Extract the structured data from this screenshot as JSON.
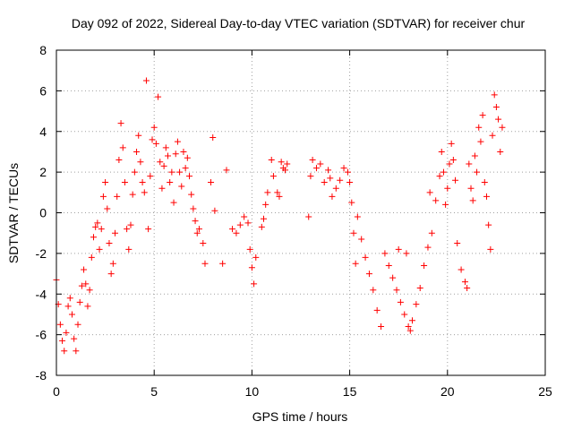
{
  "chart_data": {
    "type": "scatter",
    "title": "Day 092 of 2022, Sidereal Day-to-day VTEC variation (SDTVAR) for receiver chur",
    "xlabel": "GPS time / hours",
    "ylabel": "SDTVAR / TECUs",
    "xlim": [
      0,
      25
    ],
    "ylim": [
      -8,
      8
    ],
    "xticks": [
      0,
      5,
      10,
      15,
      20,
      25
    ],
    "yticks": [
      -8,
      -6,
      -4,
      -2,
      0,
      2,
      4,
      6,
      8
    ],
    "grid": true,
    "marker": "+",
    "series": [
      {
        "name": "SDTVAR",
        "color": "#ff0000",
        "points": [
          [
            0.0,
            -3.3
          ],
          [
            0.1,
            -4.5
          ],
          [
            0.2,
            -5.5
          ],
          [
            0.3,
            -6.3
          ],
          [
            0.4,
            -6.8
          ],
          [
            0.5,
            -5.9
          ],
          [
            0.6,
            -4.6
          ],
          [
            0.7,
            -4.2
          ],
          [
            0.8,
            -5.0
          ],
          [
            0.9,
            -6.2
          ],
          [
            1.0,
            -6.8
          ],
          [
            1.1,
            -5.5
          ],
          [
            1.2,
            -4.4
          ],
          [
            1.3,
            -3.6
          ],
          [
            1.4,
            -2.8
          ],
          [
            1.5,
            -3.5
          ],
          [
            1.6,
            -4.6
          ],
          [
            1.7,
            -3.8
          ],
          [
            1.8,
            -2.2
          ],
          [
            1.9,
            -1.2
          ],
          [
            2.0,
            -0.7
          ],
          [
            2.1,
            -0.5
          ],
          [
            2.2,
            -1.8
          ],
          [
            2.3,
            -0.8
          ],
          [
            2.4,
            0.8
          ],
          [
            2.5,
            1.5
          ],
          [
            2.6,
            0.2
          ],
          [
            2.7,
            -1.5
          ],
          [
            2.8,
            -3.0
          ],
          [
            2.9,
            -2.5
          ],
          [
            3.0,
            -1.0
          ],
          [
            3.1,
            0.8
          ],
          [
            3.2,
            2.6
          ],
          [
            3.3,
            4.4
          ],
          [
            3.4,
            3.2
          ],
          [
            3.5,
            1.5
          ],
          [
            3.6,
            -0.8
          ],
          [
            3.7,
            -1.8
          ],
          [
            3.8,
            -0.6
          ],
          [
            3.9,
            0.9
          ],
          [
            4.0,
            2.0
          ],
          [
            4.1,
            3.0
          ],
          [
            4.2,
            3.8
          ],
          [
            4.3,
            2.5
          ],
          [
            4.4,
            1.5
          ],
          [
            4.5,
            1.0
          ],
          [
            4.6,
            6.5
          ],
          [
            4.7,
            -0.8
          ],
          [
            4.8,
            1.8
          ],
          [
            4.9,
            3.6
          ],
          [
            5.0,
            4.2
          ],
          [
            5.1,
            3.4
          ],
          [
            5.2,
            5.7
          ],
          [
            5.3,
            2.5
          ],
          [
            5.4,
            1.2
          ],
          [
            5.5,
            2.3
          ],
          [
            5.6,
            3.2
          ],
          [
            5.7,
            2.8
          ],
          [
            5.8,
            1.5
          ],
          [
            5.9,
            2.0
          ],
          [
            6.0,
            0.5
          ],
          [
            6.1,
            2.9
          ],
          [
            6.2,
            3.5
          ],
          [
            6.3,
            2.0
          ],
          [
            6.4,
            1.3
          ],
          [
            6.5,
            3.0
          ],
          [
            6.6,
            2.2
          ],
          [
            6.7,
            2.7
          ],
          [
            6.8,
            1.8
          ],
          [
            6.9,
            0.9
          ],
          [
            7.0,
            0.2
          ],
          [
            7.1,
            -0.4
          ],
          [
            7.2,
            -1.0
          ],
          [
            7.3,
            -0.8
          ],
          [
            7.5,
            -1.5
          ],
          [
            7.6,
            -2.5
          ],
          [
            7.9,
            1.5
          ],
          [
            8.0,
            3.7
          ],
          [
            8.1,
            0.1
          ],
          [
            8.5,
            -2.5
          ],
          [
            8.7,
            2.1
          ],
          [
            9.0,
            -0.8
          ],
          [
            9.2,
            -1.0
          ],
          [
            9.4,
            -0.6
          ],
          [
            9.6,
            -0.2
          ],
          [
            9.8,
            -0.5
          ],
          [
            9.9,
            -1.8
          ],
          [
            10.0,
            -2.7
          ],
          [
            10.1,
            -3.5
          ],
          [
            10.2,
            -2.2
          ],
          [
            10.5,
            -0.7
          ],
          [
            10.6,
            -0.3
          ],
          [
            10.7,
            0.4
          ],
          [
            10.8,
            1.0
          ],
          [
            11.0,
            2.6
          ],
          [
            11.1,
            1.8
          ],
          [
            11.3,
            1.0
          ],
          [
            11.4,
            0.8
          ],
          [
            11.5,
            2.5
          ],
          [
            11.6,
            2.2
          ],
          [
            11.7,
            2.1
          ],
          [
            11.8,
            2.4
          ],
          [
            12.9,
            -0.2
          ],
          [
            13.0,
            1.8
          ],
          [
            13.1,
            2.6
          ],
          [
            13.3,
            2.2
          ],
          [
            13.5,
            2.4
          ],
          [
            13.7,
            1.5
          ],
          [
            13.9,
            2.1
          ],
          [
            14.0,
            1.7
          ],
          [
            14.1,
            0.8
          ],
          [
            14.3,
            1.2
          ],
          [
            14.5,
            1.6
          ],
          [
            14.7,
            2.2
          ],
          [
            14.9,
            2.0
          ],
          [
            15.0,
            1.5
          ],
          [
            15.1,
            0.5
          ],
          [
            15.2,
            -1.0
          ],
          [
            15.3,
            -2.5
          ],
          [
            15.4,
            -0.2
          ],
          [
            15.6,
            -1.3
          ],
          [
            15.8,
            -2.2
          ],
          [
            16.0,
            -3.0
          ],
          [
            16.2,
            -3.8
          ],
          [
            16.4,
            -4.8
          ],
          [
            16.6,
            -5.6
          ],
          [
            16.8,
            -2.0
          ],
          [
            17.0,
            -2.6
          ],
          [
            17.2,
            -3.2
          ],
          [
            17.4,
            -3.8
          ],
          [
            17.5,
            -1.8
          ],
          [
            17.6,
            -4.4
          ],
          [
            17.8,
            -5.0
          ],
          [
            17.9,
            -2.0
          ],
          [
            18.0,
            -5.6
          ],
          [
            18.1,
            -5.8
          ],
          [
            18.2,
            -5.3
          ],
          [
            18.4,
            -4.5
          ],
          [
            18.6,
            -3.7
          ],
          [
            18.8,
            -2.6
          ],
          [
            19.0,
            -1.7
          ],
          [
            19.1,
            1.0
          ],
          [
            19.2,
            -1.0
          ],
          [
            19.4,
            0.6
          ],
          [
            19.6,
            1.8
          ],
          [
            19.7,
            3.0
          ],
          [
            19.8,
            2.0
          ],
          [
            19.9,
            0.4
          ],
          [
            20.0,
            1.2
          ],
          [
            20.1,
            2.4
          ],
          [
            20.2,
            3.4
          ],
          [
            20.3,
            2.6
          ],
          [
            20.4,
            1.6
          ],
          [
            20.5,
            -1.5
          ],
          [
            20.7,
            -2.8
          ],
          [
            20.9,
            -3.4
          ],
          [
            21.0,
            -3.7
          ],
          [
            21.1,
            2.4
          ],
          [
            21.2,
            1.2
          ],
          [
            21.3,
            0.6
          ],
          [
            21.4,
            2.8
          ],
          [
            21.5,
            2.0
          ],
          [
            21.6,
            4.2
          ],
          [
            21.7,
            3.5
          ],
          [
            21.8,
            4.8
          ],
          [
            21.9,
            1.5
          ],
          [
            22.0,
            0.8
          ],
          [
            22.1,
            -0.6
          ],
          [
            22.2,
            -1.8
          ],
          [
            22.3,
            3.8
          ],
          [
            22.4,
            5.8
          ],
          [
            22.5,
            5.2
          ],
          [
            22.6,
            4.6
          ],
          [
            22.7,
            3.0
          ],
          [
            22.8,
            4.2
          ]
        ]
      }
    ]
  }
}
